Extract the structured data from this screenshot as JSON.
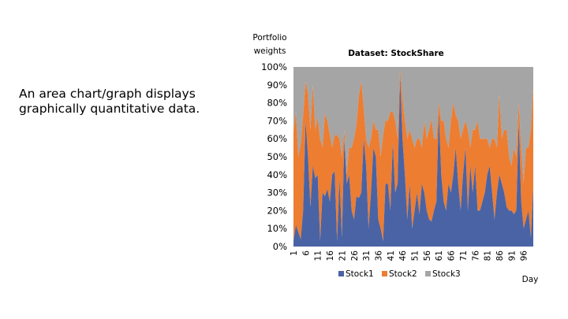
{
  "slide": {
    "text_lines": [
      "An area chart/graph displays",
      "graphically quantitative data."
    ]
  },
  "chart_data": {
    "type": "area",
    "stacked": true,
    "percent": true,
    "title": "Dataset: StockShare",
    "ylabel": "Portfolio weights",
    "xlabel": "Day",
    "ylim": [
      0,
      100
    ],
    "yticks": [
      "0%",
      "10%",
      "20%",
      "30%",
      "40%",
      "50%",
      "60%",
      "70%",
      "80%",
      "90%",
      "100%"
    ],
    "xticks": [
      1,
      6,
      11,
      16,
      21,
      26,
      31,
      36,
      41,
      46,
      51,
      56,
      61,
      66,
      71,
      76,
      81,
      86,
      91,
      96
    ],
    "legend": "bottom",
    "colors": {
      "Stock1": "#4a63a5",
      "Stock2": "#ed7d31",
      "Stock3": "#a5a5a5"
    },
    "series": [
      {
        "name": "Stock1",
        "values": [
          3,
          12,
          8,
          4,
          20,
          70,
          50,
          22,
          45,
          38,
          40,
          3,
          30,
          28,
          32,
          25,
          40,
          42,
          3,
          38,
          5,
          60,
          35,
          40,
          20,
          15,
          28,
          27,
          30,
          60,
          45,
          10,
          30,
          55,
          50,
          15,
          10,
          3,
          35,
          35,
          20,
          58,
          30,
          35,
          95,
          60,
          40,
          15,
          35,
          10,
          20,
          30,
          18,
          35,
          30,
          20,
          15,
          14,
          20,
          25,
          75,
          40,
          25,
          20,
          35,
          30,
          40,
          55,
          35,
          20,
          40,
          55,
          20,
          45,
          30,
          45,
          20,
          20,
          25,
          30,
          40,
          45,
          30,
          15,
          30,
          40,
          35,
          30,
          22,
          20,
          20,
          18,
          20,
          70,
          25,
          10,
          15,
          20,
          5,
          33
        ]
      },
      {
        "name": "Stock2",
        "values": [
          61,
          63,
          42,
          53,
          53,
          22,
          35,
          43,
          45,
          27,
          32,
          57,
          25,
          46,
          38,
          37,
          15,
          20,
          59,
          22,
          45,
          5,
          5,
          15,
          35,
          45,
          40,
          57,
          62,
          17,
          15,
          45,
          30,
          15,
          15,
          50,
          40,
          59,
          35,
          35,
          55,
          17,
          40,
          25,
          3,
          23,
          30,
          45,
          30,
          50,
          35,
          30,
          42,
          20,
          40,
          40,
          50,
          57,
          40,
          35,
          5,
          30,
          45,
          40,
          20,
          40,
          40,
          18,
          35,
          40,
          25,
          15,
          45,
          10,
          35,
          20,
          50,
          40,
          35,
          30,
          20,
          10,
          30,
          45,
          25,
          45,
          25,
          35,
          43,
          30,
          25,
          37,
          30,
          10,
          30,
          25,
          40,
          35,
          60,
          55
        ]
      }
    ]
  }
}
